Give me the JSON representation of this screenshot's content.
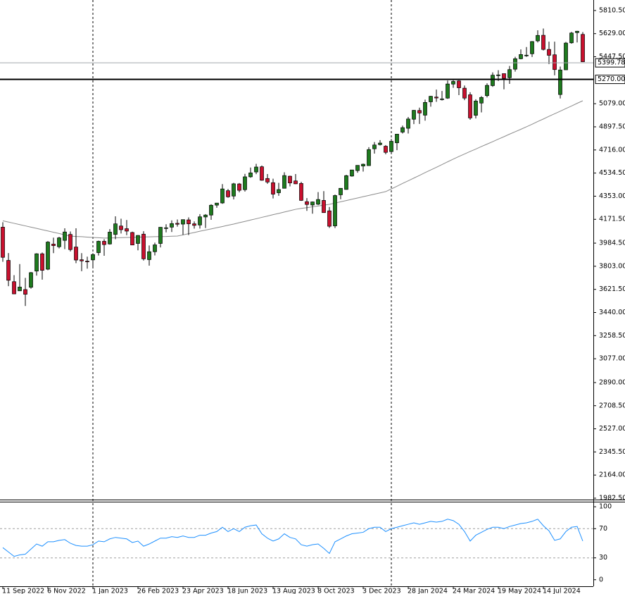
{
  "chart_data": [
    {
      "type": "candlestick",
      "categories": [
        "11 Sep 2022",
        null,
        null,
        null,
        null,
        null,
        null,
        null,
        "6 Nov 2022",
        null,
        null,
        null,
        null,
        null,
        null,
        null,
        "1 Jan 2023",
        null,
        null,
        null,
        null,
        null,
        null,
        null,
        "26 Feb 2023",
        null,
        null,
        null,
        null,
        null,
        null,
        null,
        "23 Apr 2023",
        null,
        null,
        null,
        null,
        null,
        null,
        null,
        "18 Jun 2023",
        null,
        null,
        null,
        null,
        null,
        null,
        null,
        "13 Aug 2023",
        null,
        null,
        null,
        null,
        null,
        null,
        null,
        "8 Oct 2023",
        null,
        null,
        null,
        null,
        null,
        null,
        null,
        "3 Dec 2023",
        null,
        null,
        null,
        null,
        null,
        null,
        null,
        "28 Jan 2024",
        null,
        null,
        null,
        null,
        null,
        null,
        null,
        "24 Mar 2024",
        null,
        null,
        null,
        null,
        null,
        null,
        null,
        "19 May 2024",
        null,
        null,
        null,
        null,
        null,
        null,
        null,
        "14 Jul 2024",
        null,
        null,
        null,
        null,
        null,
        null,
        null
      ],
      "open": [
        4110,
        3849,
        3682,
        3610,
        3620,
        3638,
        3765,
        3901,
        3780,
        3977,
        3956,
        4006,
        4053,
        3954,
        3854,
        3843,
        3853,
        3910,
        3999,
        3978,
        4053,
        4119,
        4098,
        4068,
        3982,
        4055,
        3855,
        3917,
        3982,
        4102,
        4110,
        4140,
        4134,
        4167,
        4136,
        4127,
        4190,
        4205,
        4283,
        4300,
        4396,
        4354,
        4449,
        4404,
        4505,
        4543,
        4584,
        4492,
        4459,
        4380,
        4415,
        4510,
        4473,
        4453,
        4310,
        4284,
        4290,
        4320,
        4238,
        4120,
        4364,
        4406,
        4511,
        4554,
        4590,
        4593,
        4725,
        4758,
        4745,
        4703,
        4772,
        4856,
        4886,
        4957,
        5026,
        4989,
        5094,
        5131,
        5111,
        5123,
        5233,
        5258,
        5201,
        5149,
        4988,
        5084,
        5142,
        5221,
        5305,
        5315,
        5283,
        5350,
        5432,
        5458,
        5471,
        5572,
        5616,
        5505,
        5463,
        5151,
        5345,
        5557,
        5637,
        5623
      ],
      "high": [
        4149,
        3907,
        3733,
        3820,
        3712,
        3758,
        3905,
        3911,
        4001,
        4028,
        4034,
        4101,
        4076,
        4101,
        3906,
        3878,
        3906,
        4004,
        4015,
        4095,
        4195,
        4176,
        4166,
        4075,
        4048,
        4078,
        3966,
        3988,
        4110,
        4133,
        4163,
        4170,
        4170,
        4187,
        4155,
        4212,
        4212,
        4290,
        4298,
        4448,
        4409,
        4458,
        4456,
        4528,
        4578,
        4607,
        4594,
        4527,
        4490,
        4458,
        4541,
        4514,
        4527,
        4466,
        4338,
        4311,
        4385,
        4393,
        4268,
        4366,
        4415,
        4521,
        4560,
        4596,
        4609,
        4738,
        4778,
        4793,
        4754,
        4802,
        4842,
        4907,
        4975,
        5030,
        5048,
        5111,
        5141,
        5190,
        5179,
        5261,
        5264,
        5263,
        5222,
        5169,
        5114,
        5139,
        5239,
        5325,
        5342,
        5315,
        5375,
        5447,
        5505,
        5524,
        5570,
        5655,
        5669,
        5566,
        5566,
        5370,
        5564,
        5643,
        5651,
        5641
      ],
      "low": [
        3838,
        3647,
        3584,
        3610,
        3491,
        3627,
        3730,
        3698,
        3772,
        3906,
        3943,
        3938,
        3919,
        3827,
        3764,
        3784,
        3794,
        3887,
        3885,
        3973,
        4015,
        4060,
        4047,
        3968,
        3928,
        3848,
        3808,
        3888,
        3951,
        4069,
        4072,
        4114,
        4050,
        4048,
        4098,
        4099,
        4103,
        4167,
        4262,
        4293,
        4341,
        4328,
        4384,
        4389,
        4498,
        4526,
        4474,
        4450,
        4335,
        4356,
        4414,
        4430,
        4448,
        4316,
        4238,
        4216,
        4283,
        4223,
        4104,
        4103,
        4329,
        4404,
        4506,
        4537,
        4546,
        4593,
        4687,
        4751,
        4682,
        4682,
        4714,
        4845,
        4845,
        4919,
        4920,
        4946,
        5056,
        5094,
        5104,
        5117,
        5204,
        5146,
        5107,
        4953,
        4963,
        5011,
        5128,
        5211,
        5257,
        5192,
        5235,
        5331,
        5428,
        5447,
        5446,
        5560,
        5497,
        5390,
        5302,
        5120,
        5345,
        5550,
        5560,
        5407
      ],
      "close": [
        3873,
        3693,
        3586,
        3640,
        3583,
        3753,
        3901,
        3771,
        3993,
        3965,
        4026,
        4072,
        3934,
        3852,
        3845,
        3840,
        3895,
        3999,
        3973,
        4071,
        4136,
        4090,
        4079,
        3970,
        4045,
        3861,
        3917,
        3971,
        4109,
        4105,
        4138,
        4133,
        4169,
        4136,
        4124,
        4191,
        4205,
        4282,
        4299,
        4410,
        4348,
        4450,
        4399,
        4505,
        4536,
        4582,
        4478,
        4464,
        4369,
        4405,
        4515,
        4457,
        4450,
        4320,
        4288,
        4308,
        4327,
        4224,
        4117,
        4358,
        4415,
        4514,
        4559,
        4595,
        4604,
        4719,
        4755,
        4770,
        4697,
        4784,
        4840,
        4891,
        4959,
        5027,
        5006,
        5089,
        5137,
        5124,
        5117,
        5234,
        5254,
        5204,
        5123,
        4967,
        5100,
        5128,
        5223,
        5303,
        5305,
        5278,
        5347,
        5432,
        5465,
        5460,
        5567,
        5615,
        5505,
        5459,
        5347,
        5344,
        5555,
        5634,
        5648,
        5408
      ],
      "ma": [
        4160,
        4150,
        4140,
        4130,
        4120,
        4110,
        4100,
        4090,
        4080,
        4070,
        4060,
        4050,
        4040,
        4037,
        4035,
        4032,
        4029,
        4027,
        4024,
        4025,
        4026,
        4028,
        4029,
        4030,
        4031,
        4033,
        4034,
        4035,
        4036,
        4037,
        4039,
        4040,
        4049,
        4059,
        4068,
        4078,
        4087,
        4096,
        4106,
        4115,
        4125,
        4134,
        4145,
        4155,
        4166,
        4176,
        4187,
        4197,
        4208,
        4218,
        4229,
        4239,
        4250,
        4257,
        4263,
        4270,
        4276,
        4283,
        4289,
        4299,
        4309,
        4319,
        4329,
        4339,
        4349,
        4359,
        4369,
        4379,
        4389,
        4410,
        4431,
        4453,
        4474,
        4495,
        4516,
        4538,
        4559,
        4580,
        4601,
        4623,
        4644,
        4665,
        4684,
        4704,
        4723,
        4743,
        4762,
        4781,
        4801,
        4820,
        4840,
        4859,
        4878,
        4898,
        4918,
        4939,
        4959,
        4980,
        5000,
        5020,
        5041,
        5061,
        5082,
        5102
      ],
      "up_color": "#1e7a1e",
      "down_color": "#c8102e",
      "ma_color": "#8c8c8c",
      "ylim": [
        1966,
        5893
      ],
      "yticks": [
        {
          "value": 5810.5,
          "label": "5810.50"
        },
        {
          "value": 5629,
          "label": "5629.00"
        },
        {
          "value": 5447.5,
          "label": "5447.50"
        },
        {
          "value": 5079,
          "label": "5079.00"
        },
        {
          "value": 4897.5,
          "label": "4897.50"
        },
        {
          "value": 4716,
          "label": "4716.00"
        },
        {
          "value": 4534.5,
          "label": "4534.50"
        },
        {
          "value": 4353,
          "label": "4353.00"
        },
        {
          "value": 4171.5,
          "label": "4171.50"
        },
        {
          "value": 3984.5,
          "label": "3984.50"
        },
        {
          "value": 3803,
          "label": "3803.00"
        },
        {
          "value": 3621.5,
          "label": "3621.50"
        },
        {
          "value": 3440,
          "label": "3440.00"
        },
        {
          "value": 3258.5,
          "label": "3258.50"
        },
        {
          "value": 3077,
          "label": "3077.00"
        },
        {
          "value": 2890,
          "label": "2890.00"
        },
        {
          "value": 2708.5,
          "label": "2708.50"
        },
        {
          "value": 2527,
          "label": "2527.00"
        },
        {
          "value": 2345.5,
          "label": "2345.50"
        },
        {
          "value": 2164,
          "label": "2164.00"
        },
        {
          "value": 1982.5,
          "label": "1982.50"
        }
      ],
      "hlines": [
        {
          "value": 5399.78,
          "label": "5399.78",
          "color": "#a0a8ad",
          "width": 1
        },
        {
          "value": 5270,
          "label": "5270.00",
          "color": "#000000",
          "width": 2
        }
      ]
    },
    {
      "type": "line",
      "values": [
        44,
        38,
        32,
        34,
        35,
        42,
        49,
        46,
        52,
        52,
        54,
        55,
        50,
        47,
        46,
        46,
        48,
        53,
        52,
        56,
        58,
        57,
        56,
        51,
        53,
        46,
        49,
        53,
        57,
        57,
        59,
        58,
        60,
        58,
        58,
        61,
        61,
        64,
        66,
        72,
        66,
        70,
        66,
        72,
        74,
        75,
        63,
        57,
        53,
        56,
        63,
        58,
        56,
        48,
        46,
        48,
        49,
        43,
        36,
        52,
        56,
        60,
        63,
        64,
        65,
        70,
        72,
        72,
        66,
        70,
        72,
        74,
        76,
        78,
        76,
        78,
        80,
        79,
        80,
        83,
        81,
        76,
        66,
        53,
        61,
        65,
        69,
        72,
        72,
        70,
        73,
        75,
        77,
        78,
        80,
        83,
        74,
        67,
        54,
        56,
        66,
        72,
        73,
        53
      ],
      "color": "#1e90ff",
      "ylim": [
        -7,
        106
      ],
      "yticks": [
        100,
        70,
        30,
        0
      ],
      "levels": [
        70,
        30
      ]
    }
  ]
}
